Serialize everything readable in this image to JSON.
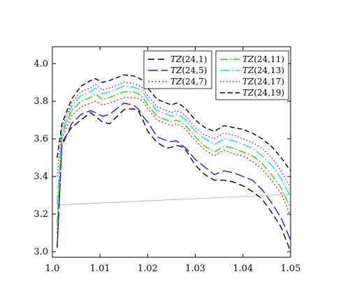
{
  "chart_data": {
    "type": "line",
    "title": "",
    "xlabel": "",
    "ylabel": "",
    "xlim": [
      1.0,
      1.05
    ],
    "ylim": [
      2.97,
      4.09
    ],
    "xticks": [
      "1.0",
      "1.01",
      "1.02",
      "1.03",
      "1.04",
      "1.05"
    ],
    "yticks": [
      "3.0",
      "3.2",
      "3.4",
      "3.6",
      "3.8",
      "4.0"
    ],
    "grid": false,
    "legend": [
      {
        "position": "top-center",
        "items": [
          0,
          1,
          2
        ]
      },
      {
        "position": "top-right",
        "items": [
          3,
          4,
          5,
          6
        ]
      }
    ],
    "x": [
      1.001,
      1.002,
      1.004,
      1.006,
      1.008,
      1.009,
      1.0105,
      1.012,
      1.014,
      1.015,
      1.017,
      1.018,
      1.019,
      1.02,
      1.022,
      1.024,
      1.025,
      1.026,
      1.027,
      1.028,
      1.03,
      1.032,
      1.034,
      1.036,
      1.038,
      1.04,
      1.042,
      1.044,
      1.046,
      1.048,
      1.05
    ],
    "series": [
      {
        "name_prefix": "TZ",
        "name_args": "(24,1)",
        "color": "#000000",
        "dash": "9,5",
        "values": [
          3.02,
          3.58,
          3.66,
          3.7,
          3.74,
          3.72,
          3.69,
          3.68,
          3.73,
          3.755,
          3.76,
          3.75,
          3.7,
          3.64,
          3.58,
          3.55,
          3.555,
          3.565,
          3.56,
          3.54,
          3.46,
          3.41,
          3.38,
          3.38,
          3.37,
          3.35,
          3.32,
          3.28,
          3.21,
          3.13,
          3.0
        ]
      },
      {
        "name_prefix": "TZ",
        "name_args": "(24,5)",
        "color": "#1a1adc",
        "dash": "14,5",
        "values": [
          3.02,
          3.56,
          3.68,
          3.73,
          3.75,
          3.74,
          3.72,
          3.73,
          3.77,
          3.79,
          3.78,
          3.76,
          3.72,
          3.69,
          3.61,
          3.59,
          3.585,
          3.59,
          3.57,
          3.55,
          3.49,
          3.45,
          3.41,
          3.43,
          3.42,
          3.4,
          3.38,
          3.33,
          3.26,
          3.18,
          3.06
        ]
      },
      {
        "name_prefix": "TZ",
        "name_args": "(24,7)",
        "color": "#e32020",
        "dash": "2,3",
        "values": [
          3.1,
          3.6,
          3.72,
          3.77,
          3.79,
          3.8,
          3.78,
          3.79,
          3.81,
          3.82,
          3.82,
          3.815,
          3.8,
          3.76,
          3.7,
          3.68,
          3.67,
          3.68,
          3.67,
          3.65,
          3.59,
          3.54,
          3.51,
          3.54,
          3.52,
          3.51,
          3.48,
          3.44,
          3.38,
          3.31,
          3.19
        ]
      },
      {
        "name_prefix": "TZ",
        "name_args": "(24,11)",
        "color": "#2ecc1a",
        "dash": "11,3,2,3",
        "values": [
          3.15,
          3.62,
          3.75,
          3.8,
          3.82,
          3.84,
          3.81,
          3.82,
          3.84,
          3.85,
          3.85,
          3.84,
          3.82,
          3.78,
          3.72,
          3.7,
          3.69,
          3.7,
          3.69,
          3.67,
          3.61,
          3.56,
          3.53,
          3.56,
          3.55,
          3.53,
          3.51,
          3.47,
          3.41,
          3.34,
          3.23
        ]
      },
      {
        "name_prefix": "TZ",
        "name_args": "(24,13)",
        "color": "#20d6e0",
        "dash": "14,3,2,3",
        "values": [
          3.25,
          3.64,
          3.77,
          3.83,
          3.85,
          3.87,
          3.84,
          3.85,
          3.87,
          3.88,
          3.875,
          3.865,
          3.85,
          3.81,
          3.75,
          3.73,
          3.72,
          3.73,
          3.72,
          3.7,
          3.64,
          3.6,
          3.57,
          3.6,
          3.59,
          3.57,
          3.55,
          3.51,
          3.46,
          3.39,
          3.29
        ]
      },
      {
        "name_prefix": "TZ",
        "name_args": "(24,17)",
        "color": "#8c1f5a",
        "dash": "1.5,3",
        "values": [
          3.4,
          3.66,
          3.79,
          3.85,
          3.87,
          3.89,
          3.86,
          3.87,
          3.89,
          3.9,
          3.895,
          3.885,
          3.87,
          3.83,
          3.77,
          3.75,
          3.74,
          3.75,
          3.74,
          3.72,
          3.66,
          3.62,
          3.6,
          3.63,
          3.62,
          3.6,
          3.58,
          3.55,
          3.5,
          3.43,
          3.34
        ]
      },
      {
        "name_prefix": "TZ",
        "name_args": "(24,19)",
        "color": "#000000",
        "dash": "7,4",
        "values": [
          3.5,
          3.68,
          3.81,
          3.88,
          3.91,
          3.92,
          3.9,
          3.91,
          3.93,
          3.94,
          3.935,
          3.925,
          3.91,
          3.87,
          3.81,
          3.79,
          3.78,
          3.79,
          3.78,
          3.76,
          3.7,
          3.66,
          3.64,
          3.67,
          3.66,
          3.65,
          3.63,
          3.6,
          3.56,
          3.5,
          3.43
        ]
      }
    ],
    "reference_line": {
      "x": [
        1.001,
        1.05
      ],
      "y": [
        3.248,
        3.305
      ],
      "color": "#aaaaaa"
    }
  }
}
